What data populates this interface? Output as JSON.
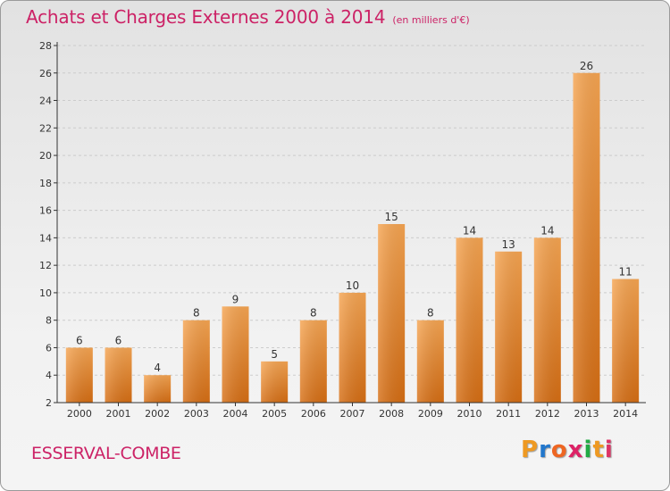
{
  "chart_data": {
    "type": "bar",
    "title": "Achats et Charges Externes 2000 à 2014",
    "subtitle": "(en milliers d'€)",
    "categories": [
      "2000",
      "2001",
      "2002",
      "2003",
      "2004",
      "2005",
      "2006",
      "2007",
      "2008",
      "2009",
      "2010",
      "2011",
      "2012",
      "2013",
      "2014"
    ],
    "values": [
      6,
      6,
      4,
      8,
      9,
      5,
      8,
      10,
      15,
      8,
      14,
      13,
      14,
      26,
      11
    ],
    "ylim": [
      2,
      28
    ],
    "yticks": [
      2,
      4,
      6,
      8,
      10,
      12,
      14,
      16,
      18,
      20,
      22,
      24,
      26,
      28
    ],
    "grid": "horizontal-dashed",
    "bar_color": "#f0963c",
    "xlabel": "",
    "ylabel": ""
  },
  "footer": {
    "commune": "ESSERVAL-COMBE",
    "logo": [
      "P",
      "r",
      "o",
      "x",
      "i",
      "t",
      "i"
    ],
    "logo_colors": [
      "#ee9922",
      "#2277cc",
      "#ee6622",
      "#dd2266",
      "#22aa44",
      "#ee9922",
      "#dd3366"
    ]
  },
  "colors": {
    "title": "#cc2266",
    "axis": "#333333",
    "grid": "#cccccc"
  }
}
